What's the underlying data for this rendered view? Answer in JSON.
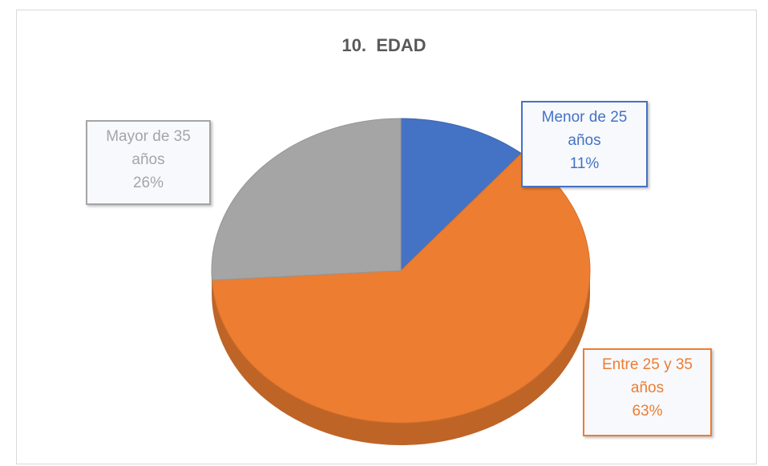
{
  "chart_data": {
    "type": "pie",
    "title": "10.  EDAD",
    "categories": [
      "Menor de 25 años",
      "Entre 25 y 35 años",
      "Mayor de 35 años"
    ],
    "values": [
      11,
      63,
      26
    ],
    "value_labels": [
      "11%",
      "63%",
      "26%"
    ],
    "colors": [
      "#4472c4",
      "#ed7d31",
      "#a5a5a5"
    ]
  }
}
